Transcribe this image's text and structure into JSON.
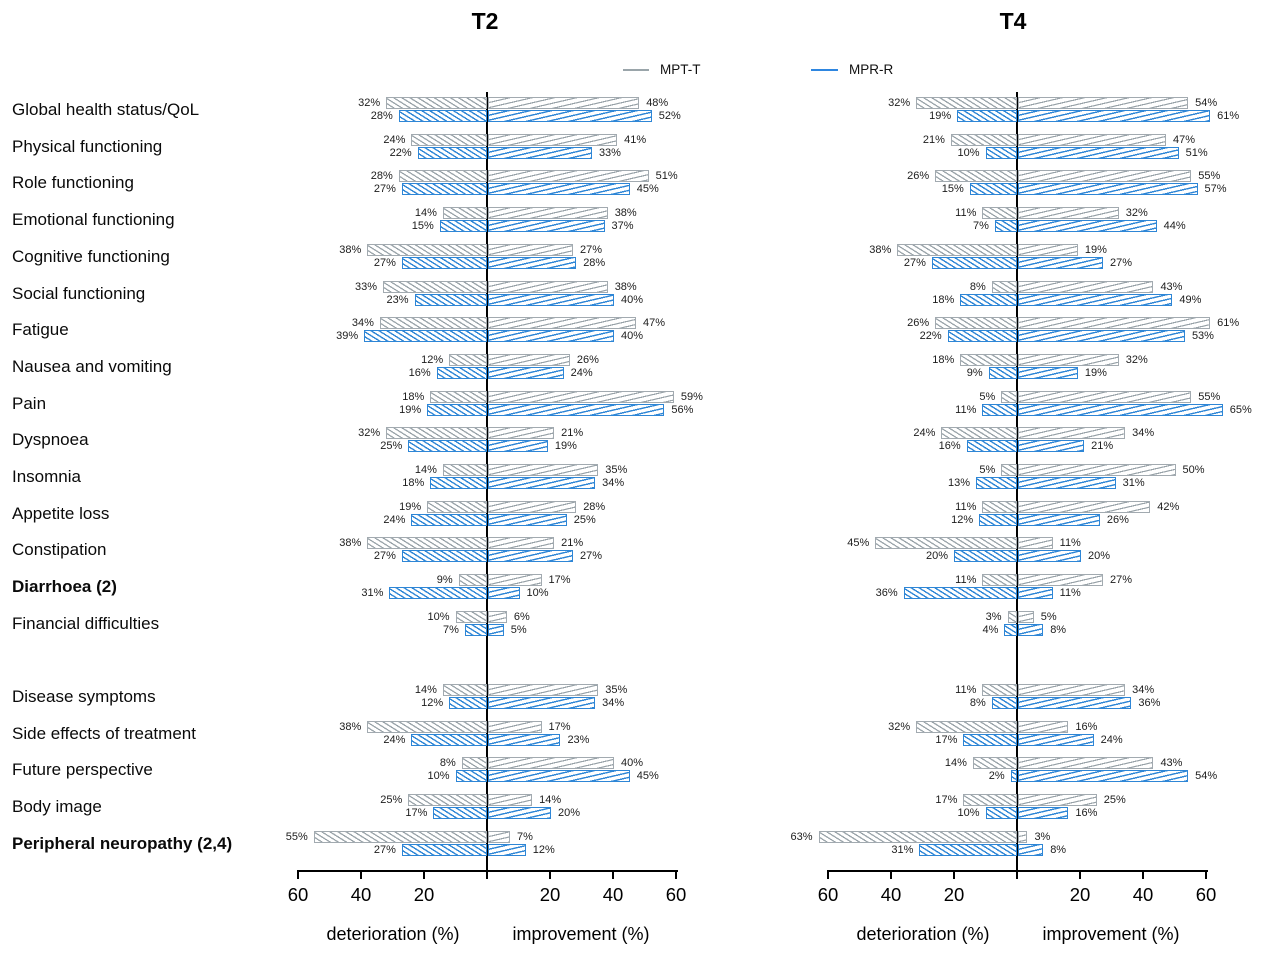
{
  "legend": {
    "items": [
      {
        "label": "MPT-T",
        "color": "#9aa5aa"
      },
      {
        "label": "MPR-R",
        "color": "#2e86e0"
      }
    ]
  },
  "axis": {
    "tick_labels": [
      "60",
      "40",
      "20",
      "20",
      "40",
      "60"
    ],
    "left_caption": "deterioration (%)",
    "right_caption": "improvement (%)"
  },
  "chart_data": {
    "type": "bar",
    "subtype": "diverging-horizontal-tornado",
    "xlim": [
      -60,
      60
    ],
    "x_ticks": [
      60,
      40,
      20,
      0,
      20,
      40,
      60
    ],
    "xlabel_left": "deterioration (%)",
    "xlabel_right": "improvement (%)",
    "legend_position": "top",
    "grid": false,
    "group_gap_after_index": 14,
    "bold_categories": [
      "Diarrhoea (2)",
      "Peripheral neuropathy (2,4)"
    ],
    "categories": [
      "Global health status/QoL",
      "Physical functioning",
      "Role functioning",
      "Emotional functioning",
      "Cognitive functioning",
      "Social functioning",
      "Fatigue",
      "Nausea and vomiting",
      "Pain",
      "Dyspnoea",
      "Insomnia",
      "Appetite loss",
      "Constipation",
      "Diarrhoea (2)",
      "Financial difficulties",
      "Disease symptoms",
      "Side effects of treatment",
      "Future perspective",
      "Body image",
      "Peripheral neuropathy (2,4)"
    ],
    "panels": [
      {
        "title": "T2",
        "series": [
          {
            "name": "MPT-T",
            "deterioration": [
              32,
              24,
              28,
              14,
              38,
              33,
              34,
              12,
              18,
              32,
              14,
              19,
              38,
              9,
              10,
              14,
              38,
              8,
              25,
              55
            ],
            "improvement": [
              48,
              41,
              51,
              38,
              27,
              38,
              47,
              26,
              59,
              21,
              35,
              28,
              21,
              17,
              6,
              35,
              17,
              40,
              14,
              7
            ]
          },
          {
            "name": "MPR-R",
            "deterioration": [
              28,
              22,
              27,
              15,
              27,
              23,
              39,
              16,
              19,
              25,
              18,
              24,
              27,
              31,
              7,
              12,
              24,
              10,
              17,
              27
            ],
            "improvement": [
              52,
              33,
              45,
              37,
              28,
              40,
              40,
              24,
              56,
              19,
              34,
              25,
              27,
              10,
              5,
              34,
              23,
              45,
              20,
              12
            ]
          }
        ]
      },
      {
        "title": "T4",
        "series": [
          {
            "name": "MPT-T",
            "deterioration": [
              32,
              21,
              26,
              11,
              38,
              8,
              26,
              18,
              5,
              24,
              5,
              11,
              45,
              11,
              3,
              11,
              32,
              14,
              17,
              63
            ],
            "improvement": [
              54,
              47,
              55,
              32,
              19,
              43,
              61,
              32,
              55,
              34,
              50,
              42,
              11,
              27,
              5,
              34,
              16,
              43,
              25,
              3
            ]
          },
          {
            "name": "MPR-R",
            "deterioration": [
              19,
              10,
              15,
              7,
              27,
              18,
              22,
              9,
              11,
              16,
              13,
              12,
              20,
              36,
              4,
              8,
              17,
              2,
              10,
              31
            ],
            "improvement": [
              61,
              51,
              57,
              44,
              27,
              49,
              53,
              19,
              65,
              21,
              31,
              26,
              20,
              11,
              8,
              36,
              24,
              54,
              16,
              8
            ]
          }
        ]
      }
    ],
    "value_suffix": "%"
  }
}
